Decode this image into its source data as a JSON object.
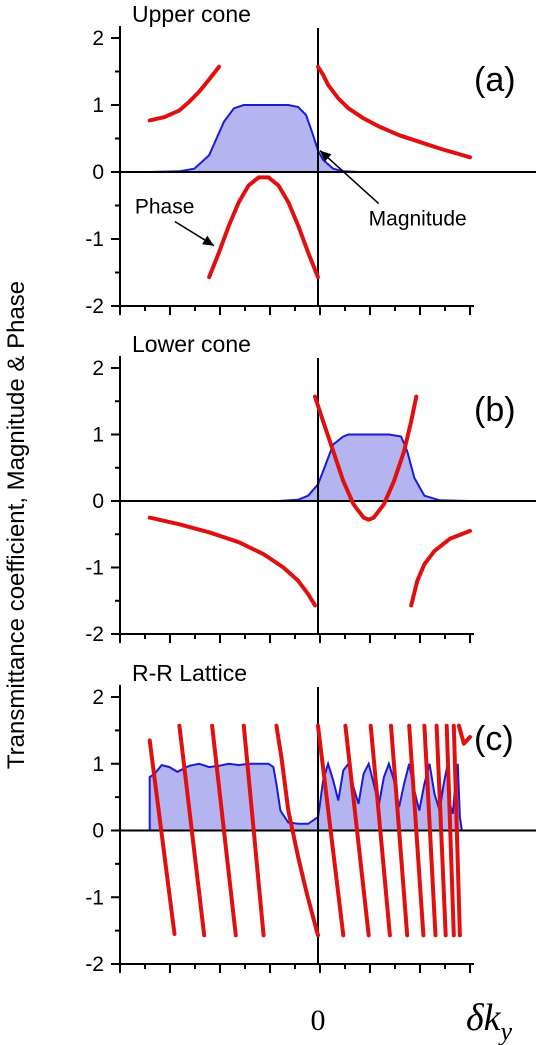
{
  "figure": {
    "ylabel": "Transmittance coefficient, Magnitude & Phase",
    "x_zero_label": "0",
    "xlabel_main": "δk",
    "xlabel_sub": "y"
  },
  "colors": {
    "phase": "#e01010",
    "magnitude": "#1a1adc",
    "magnitude_fill": "#b4b4f0"
  },
  "chart_data": [
    {
      "type": "line",
      "title": "Upper cone",
      "panel_label": "(a)",
      "xlim": [
        -2,
        1.5
      ],
      "ylim": [
        -2,
        2
      ],
      "yticks": [
        -2,
        -1,
        0,
        1,
        2
      ],
      "ytick_labels": [
        "-2",
        "-1",
        "0",
        "1",
        "2"
      ],
      "annotations": [
        {
          "text": "Phase",
          "target_x": -1.05,
          "target_y": -1.1,
          "text_x": -1.85,
          "text_y": -0.62
        },
        {
          "text": "Magnitude",
          "target_x": 0.02,
          "target_y": 0.32,
          "text_x": 0.5,
          "text_y": -0.8
        }
      ],
      "series": [
        {
          "kind": "magnitude",
          "x": [
            -1.7,
            -1.4,
            -1.25,
            -1.1,
            -0.95,
            -0.85,
            -0.75,
            -0.6,
            -0.45,
            -0.3,
            -0.2,
            -0.12,
            -0.05,
            0.0,
            0.05,
            0.15,
            0.25,
            0.4,
            1.5
          ],
          "y": [
            0,
            0.01,
            0.05,
            0.25,
            0.75,
            0.95,
            1.0,
            1.0,
            1.0,
            1.0,
            0.97,
            0.85,
            0.55,
            0.32,
            0.18,
            0.05,
            0.01,
            0.0,
            0
          ]
        },
        {
          "kind": "phase",
          "x": [
            -1.7,
            -1.55,
            -1.4,
            -1.3,
            -1.2,
            -1.1,
            -1.0
          ],
          "y": [
            0.77,
            0.82,
            0.92,
            1.05,
            1.2,
            1.38,
            1.57
          ]
        },
        {
          "kind": "phase",
          "x": [
            -1.1,
            -1.0,
            -0.9,
            -0.8,
            -0.7,
            -0.6,
            -0.5,
            -0.4,
            -0.3,
            -0.2,
            -0.1,
            0.0
          ],
          "y": [
            -1.57,
            -1.2,
            -0.8,
            -0.45,
            -0.2,
            -0.08,
            -0.08,
            -0.2,
            -0.45,
            -0.8,
            -1.2,
            -1.57
          ]
        },
        {
          "kind": "phase",
          "x": [
            0.0,
            0.05,
            0.1,
            0.2,
            0.3,
            0.45,
            0.6,
            0.8,
            1.0,
            1.2,
            1.5
          ],
          "y": [
            1.57,
            1.45,
            1.3,
            1.1,
            0.95,
            0.8,
            0.68,
            0.55,
            0.45,
            0.35,
            0.22
          ]
        }
      ]
    },
    {
      "type": "line",
      "title": "Lower cone",
      "panel_label": "(b)",
      "xlim": [
        -2,
        1.5
      ],
      "ylim": [
        -2,
        2
      ],
      "yticks": [
        -2,
        -1,
        0,
        1,
        2
      ],
      "ytick_labels": [
        "-2",
        "-1",
        "0",
        "1",
        "2"
      ],
      "series": [
        {
          "kind": "magnitude",
          "x": [
            -1.7,
            -0.4,
            -0.2,
            -0.1,
            0.0,
            0.05,
            0.15,
            0.25,
            0.3,
            0.5,
            0.7,
            0.82,
            0.88,
            0.95,
            1.05,
            1.2,
            1.5
          ],
          "y": [
            0,
            0,
            0.02,
            0.08,
            0.25,
            0.45,
            0.85,
            0.97,
            1.0,
            1.0,
            1.0,
            0.97,
            0.75,
            0.35,
            0.08,
            0.01,
            0
          ]
        },
        {
          "kind": "phase",
          "x": [
            -1.7,
            -1.4,
            -1.1,
            -0.8,
            -0.55,
            -0.35,
            -0.2,
            -0.1,
            -0.03
          ],
          "y": [
            -0.25,
            -0.35,
            -0.47,
            -0.62,
            -0.8,
            -1.0,
            -1.2,
            -1.4,
            -1.57
          ]
        },
        {
          "kind": "phase",
          "x": [
            -0.03,
            0.05,
            0.15,
            0.25,
            0.35,
            0.45,
            0.5,
            0.55,
            0.65,
            0.75,
            0.85,
            0.92,
            0.97
          ],
          "y": [
            1.57,
            1.2,
            0.75,
            0.3,
            -0.05,
            -0.25,
            -0.28,
            -0.25,
            -0.05,
            0.3,
            0.75,
            1.2,
            1.57
          ]
        },
        {
          "kind": "phase",
          "x": [
            0.92,
            0.98,
            1.05,
            1.15,
            1.3,
            1.5
          ],
          "y": [
            -1.57,
            -1.2,
            -0.95,
            -0.75,
            -0.57,
            -0.45
          ]
        }
      ]
    },
    {
      "type": "line",
      "title": "R-R Lattice",
      "panel_label": "(c)",
      "xlim": [
        -2,
        1.5
      ],
      "ylim": [
        -2,
        2
      ],
      "yticks": [
        -2,
        -1,
        0,
        1,
        2
      ],
      "ytick_labels": [
        "-2",
        "-1",
        "0",
        "1",
        "2"
      ],
      "series": [
        {
          "kind": "magnitude",
          "x": [
            -1.7,
            -1.7,
            -1.65,
            -1.58,
            -1.5,
            -1.42,
            -1.3,
            -1.2,
            -1.1,
            -1.0,
            -0.9,
            -0.8,
            -0.7,
            -0.6,
            -0.5,
            -0.45,
            -0.42,
            -0.38,
            -0.3,
            -0.2,
            -0.1,
            0.0,
            0.02,
            0.05,
            0.1,
            0.15,
            0.2,
            0.25,
            0.3,
            0.35,
            0.4,
            0.45,
            0.5,
            0.55,
            0.6,
            0.65,
            0.7,
            0.75,
            0.8,
            0.85,
            0.9,
            0.95,
            1.0,
            1.05,
            1.1,
            1.15,
            1.2,
            1.24,
            1.28,
            1.3,
            1.33,
            1.35,
            1.38,
            1.4,
            1.42
          ],
          "y": [
            0,
            0.8,
            0.85,
            0.98,
            0.95,
            0.88,
            0.97,
            1.0,
            0.95,
            0.97,
            1.0,
            0.98,
            1.0,
            1.0,
            1.0,
            0.95,
            0.7,
            0.3,
            0.12,
            0.1,
            0.1,
            0.2,
            0.4,
            0.75,
            1.0,
            0.75,
            0.45,
            0.9,
            1.0,
            0.65,
            0.4,
            0.85,
            1.0,
            0.7,
            0.38,
            0.8,
            1.0,
            0.75,
            0.35,
            0.7,
            1.0,
            0.6,
            0.3,
            0.7,
            1.0,
            0.55,
            0.3,
            0.7,
            1.0,
            0.4,
            0.25,
            0.6,
            1.0,
            0.2,
            0.0
          ]
        },
        {
          "kind": "phase",
          "x": [
            -1.7,
            -1.45
          ],
          "y": [
            1.35,
            -1.55
          ]
        },
        {
          "kind": "phase",
          "x": [
            -1.4,
            -1.15
          ],
          "y": [
            1.57,
            -1.57
          ]
        },
        {
          "kind": "phase",
          "x": [
            -1.07,
            -0.83
          ],
          "y": [
            1.57,
            -1.57
          ]
        },
        {
          "kind": "phase",
          "x": [
            -0.75,
            -0.55
          ],
          "y": [
            1.57,
            -1.57
          ]
        },
        {
          "kind": "phase",
          "x": [
            -0.42,
            -0.37,
            -0.3,
            -0.2,
            -0.12,
            -0.05,
            0.0
          ],
          "y": [
            1.57,
            1.1,
            0.3,
            -0.4,
            -0.9,
            -1.3,
            -1.57
          ]
        },
        {
          "kind": "phase",
          "x": [
            0.0,
            0.25
          ],
          "y": [
            1.57,
            -1.57
          ]
        },
        {
          "kind": "phase",
          "x": [
            0.27,
            0.5
          ],
          "y": [
            1.57,
            -1.57
          ]
        },
        {
          "kind": "phase",
          "x": [
            0.52,
            0.71
          ],
          "y": [
            1.57,
            -1.57
          ]
        },
        {
          "kind": "phase",
          "x": [
            0.72,
            0.88
          ],
          "y": [
            1.57,
            -1.57
          ]
        },
        {
          "kind": "phase",
          "x": [
            0.9,
            1.04
          ],
          "y": [
            1.57,
            -1.57
          ]
        },
        {
          "kind": "phase",
          "x": [
            1.05,
            1.16
          ],
          "y": [
            1.57,
            -1.57
          ]
        },
        {
          "kind": "phase",
          "x": [
            1.17,
            1.26
          ],
          "y": [
            1.57,
            -1.57
          ]
        },
        {
          "kind": "phase",
          "x": [
            1.27,
            1.34
          ],
          "y": [
            1.57,
            -1.57
          ]
        },
        {
          "kind": "phase",
          "x": [
            1.34,
            1.4
          ],
          "y": [
            1.57,
            -1.57
          ]
        },
        {
          "kind": "phase",
          "x": [
            1.39,
            1.44,
            1.5
          ],
          "y": [
            1.57,
            1.3,
            1.4
          ]
        }
      ]
    }
  ]
}
